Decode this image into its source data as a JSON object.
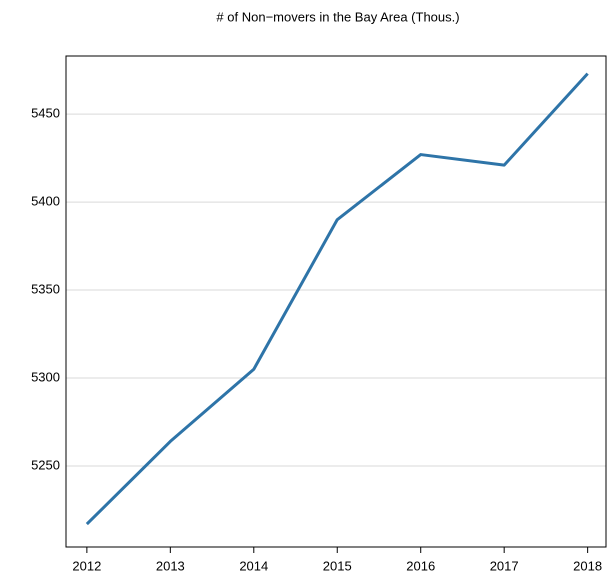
{
  "chart_data": {
    "type": "line",
    "title": "# of Non−movers in the Bay Area (Thous.)",
    "x": [
      2012,
      2013,
      2014,
      2015,
      2016,
      2017,
      2018
    ],
    "series": [
      {
        "name": "Non-movers",
        "color": "#2e74a8",
        "values": [
          5217,
          5264,
          5305,
          5390,
          5427,
          5421,
          5473
        ]
      }
    ],
    "xlim": [
      2011.75,
      2018.22
    ],
    "xticks": [
      2012,
      2013,
      2014,
      2015,
      2016,
      2017,
      2018
    ],
    "ylim": [
      5204,
      5483
    ],
    "yticks": [
      5250,
      5300,
      5350,
      5400,
      5450
    ],
    "grid": true
  }
}
